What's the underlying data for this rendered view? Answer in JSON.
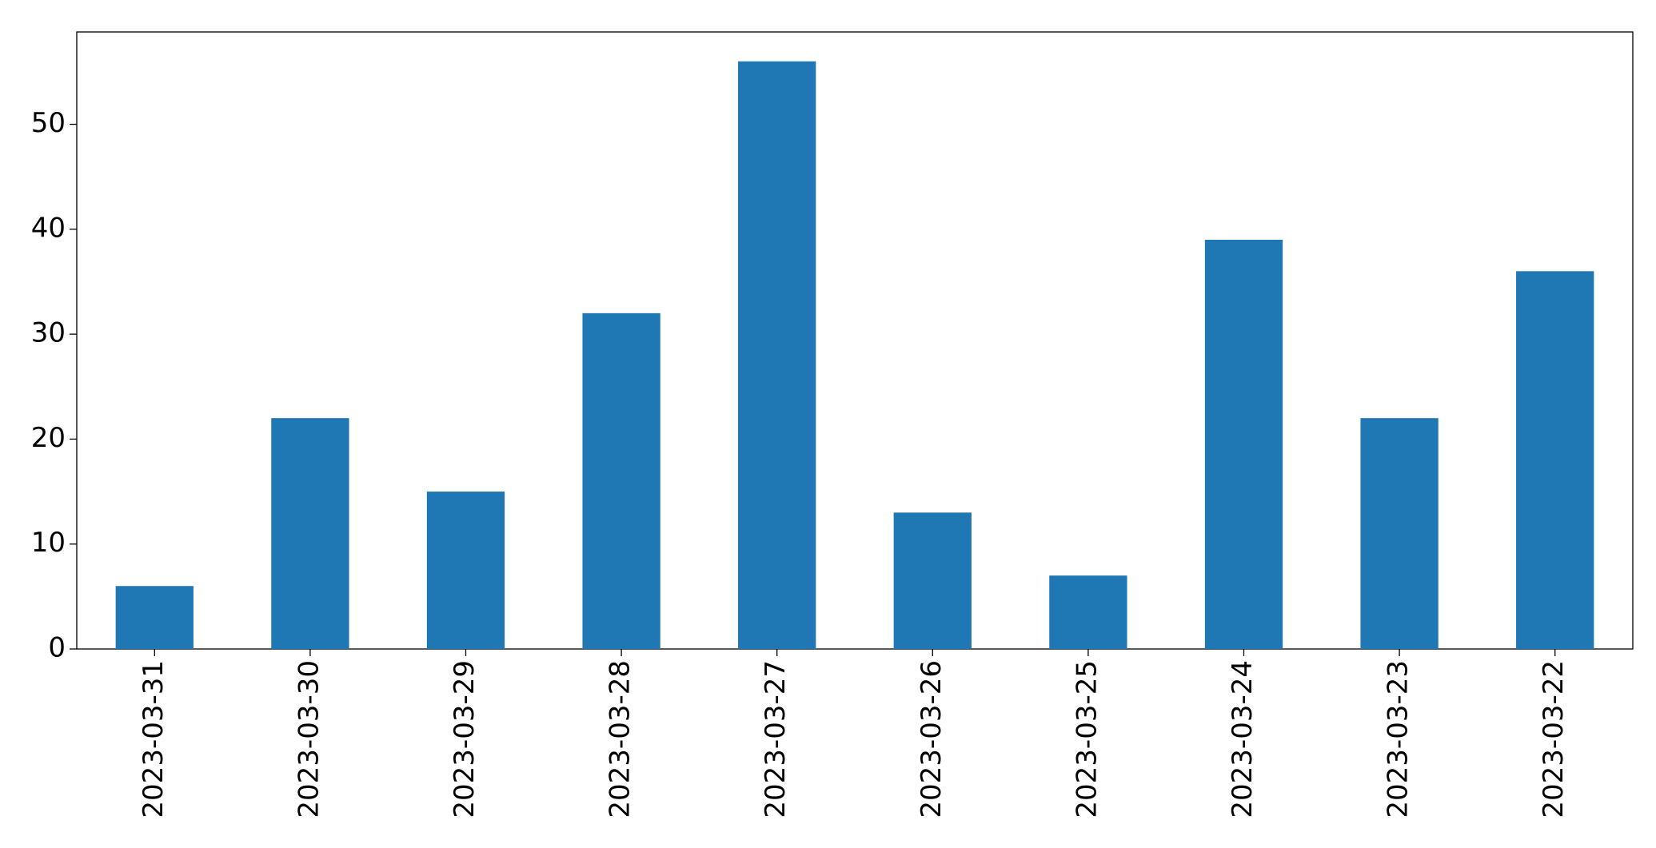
{
  "chart_data": {
    "type": "bar",
    "categories": [
      "2023-03-31",
      "2023-03-30",
      "2023-03-29",
      "2023-03-28",
      "2023-03-27",
      "2023-03-26",
      "2023-03-25",
      "2023-03-24",
      "2023-03-23",
      "2023-03-22"
    ],
    "values": [
      6,
      22,
      15,
      32,
      56,
      13,
      7,
      39,
      22,
      36
    ],
    "color": "#1f77b4",
    "ylim": [
      0,
      58.8
    ],
    "yticks": [
      0,
      10,
      20,
      30,
      40,
      50
    ],
    "grid": false
  }
}
